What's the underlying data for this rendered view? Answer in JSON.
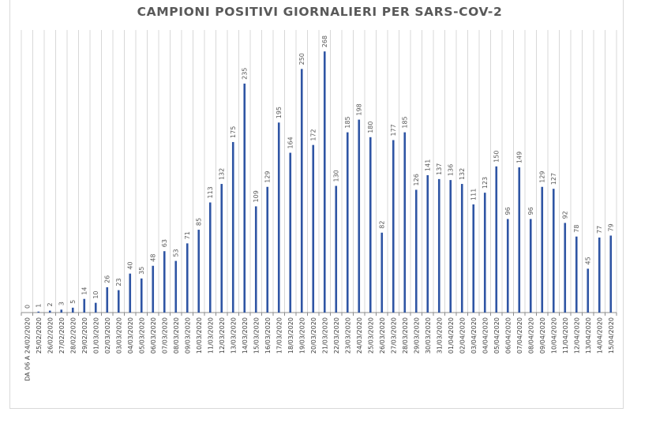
{
  "chart_data": {
    "type": "bar",
    "title": "CAMPIONI POSITIVI GIORNALIERI PER SARS-COV-2",
    "xlabel": "",
    "ylabel": "",
    "ylim": [
      0,
      290
    ],
    "grid": "vertical",
    "bar_color": "#2f55a4",
    "categories": [
      "DA 06 A 24/02/2020",
      "25/02/2020",
      "26/02/2020",
      "27/02/2020",
      "28/02/2020",
      "29/02/2020",
      "01/03/2020",
      "02/03/2020",
      "03/03/2020",
      "04/03/2020",
      "05/03/2020",
      "06/03/2020",
      "07/03/2020",
      "08/03/2020",
      "09/03/2020",
      "10/03/2020",
      "11/03/2020",
      "12/03/2020",
      "13/03/2020",
      "14/03/2020",
      "15/03/2020",
      "16/03/2020",
      "17/03/2020",
      "18/03/2020",
      "19/03/2020",
      "20/03/2020",
      "21/03/2020",
      "22/03/2020",
      "23/03/2020",
      "24/03/2020",
      "25/03/2020",
      "26/03/2020",
      "27/03/2020",
      "28/03/2020",
      "29/03/2020",
      "30/03/2020",
      "31/03/2020",
      "01/04/2020",
      "02/04/2020",
      "03/04/2020",
      "04/04/2020",
      "05/04/2020",
      "06/04/2020",
      "07/04/2020",
      "08/04/2020",
      "09/04/2020",
      "10/04/2020",
      "11/04/2020",
      "12/04/2020",
      "13/04/2020",
      "14/04/2020",
      "15/04/2020"
    ],
    "values": [
      0,
      1,
      2,
      3,
      5,
      14,
      10,
      26,
      23,
      40,
      35,
      48,
      63,
      53,
      71,
      85,
      113,
      132,
      175,
      235,
      109,
      129,
      195,
      164,
      250,
      172,
      268,
      130,
      185,
      198,
      180,
      82,
      177,
      185,
      126,
      141,
      137,
      136,
      132,
      111,
      123,
      150,
      96,
      149,
      96,
      129,
      127,
      92,
      78,
      45,
      77,
      79
    ],
    "data_labels": true
  }
}
